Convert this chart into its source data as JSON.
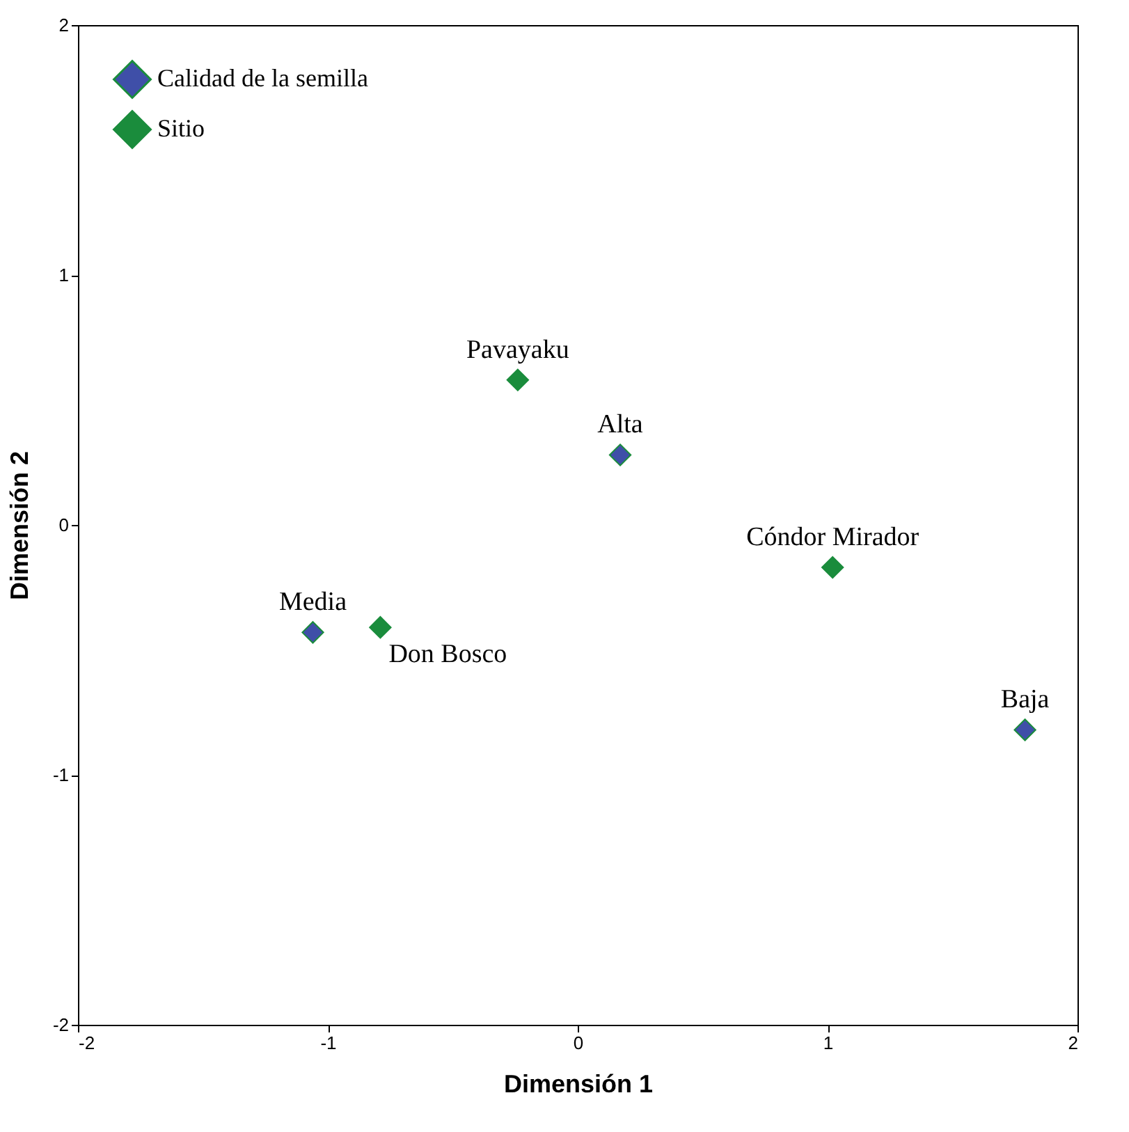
{
  "chart_data": {
    "type": "scatter",
    "xlabel": "Dimensión 1",
    "ylabel": "Dimensión 2",
    "xlim": [
      -2,
      2
    ],
    "ylim": [
      -2,
      2
    ],
    "xticks": [
      -2,
      -1,
      0,
      1,
      2
    ],
    "yticks": [
      -2,
      -1,
      0,
      1,
      2
    ],
    "grid": false,
    "legend": "top left",
    "marker": "diamond",
    "series": [
      {
        "name": "Calidad de la semilla",
        "color": "#3f4fa8",
        "x": [
          0.17,
          -1.06,
          1.79
        ],
        "values": [
          0.28,
          -0.43,
          -0.82
        ]
      },
      {
        "name": "Sitio",
        "color": "#1a8c3c",
        "x": [
          -0.24,
          1.02,
          -0.79
        ],
        "values": [
          0.58,
          -0.17,
          -0.41
        ]
      }
    ],
    "annotations": [
      {
        "text": "Pavayaku",
        "x": -0.24,
        "y": 0.58
      },
      {
        "text": "Alta",
        "x": 0.17,
        "y": 0.28
      },
      {
        "text": "Cóndor Mirador",
        "x": 1.02,
        "y": -0.17
      },
      {
        "text": "Media",
        "x": -1.06,
        "y": -0.43
      },
      {
        "text": "Don Bosco",
        "x": -0.79,
        "y": -0.41
      },
      {
        "text": "Baja",
        "x": 1.79,
        "y": -0.82
      }
    ]
  }
}
